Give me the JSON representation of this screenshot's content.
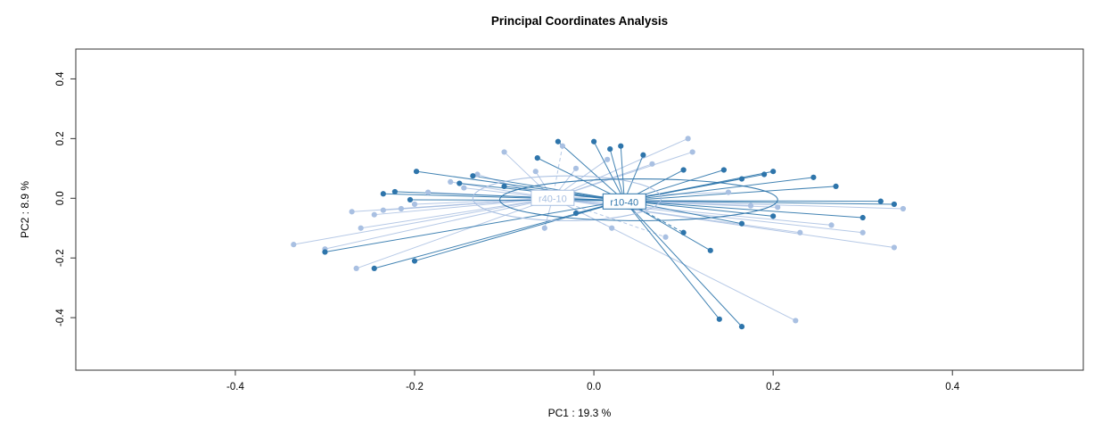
{
  "title": "Principal Coordinates Analysis",
  "chart_data": {
    "type": "scatter",
    "subtype": "pcoa-ordination-spider",
    "title": "Principal Coordinates Analysis",
    "xlabel": "PC1 :  19.3 %",
    "ylabel": "PC2 :  8.9 %",
    "xlim": [
      -0.578,
      0.546
    ],
    "ylim": [
      -0.576,
      0.5
    ],
    "grid": false,
    "legend": "none",
    "xticks": {
      "values": [
        -0.4,
        -0.2,
        0.0,
        0.2,
        0.4
      ],
      "labels": [
        "-0.4",
        "-0.2",
        "0.0",
        "0.2",
        "0.4"
      ]
    },
    "yticks": {
      "values": [
        -0.4,
        -0.2,
        0.0,
        0.2,
        0.4
      ],
      "labels": [
        "-0.4",
        "-0.2",
        "0.0",
        "0.2",
        "0.4"
      ]
    },
    "groups": [
      {
        "name": "r40-10",
        "color": "#a9c0e2",
        "line_opacity": 0.85,
        "centroid": [
          -0.046,
          0.0
        ],
        "ellipse": {
          "cx": -0.03,
          "cy": 0.0,
          "rx": 0.105,
          "ry": 0.075
        },
        "points": [
          [
            -0.335,
            -0.155
          ],
          [
            -0.3,
            -0.17
          ],
          [
            -0.265,
            -0.235
          ],
          [
            -0.26,
            -0.1
          ],
          [
            -0.27,
            -0.045
          ],
          [
            -0.245,
            -0.055
          ],
          [
            -0.235,
            -0.04
          ],
          [
            -0.215,
            -0.035
          ],
          [
            -0.2,
            -0.02
          ],
          [
            -0.185,
            0.02
          ],
          [
            -0.16,
            0.055
          ],
          [
            -0.145,
            0.035
          ],
          [
            -0.13,
            0.08
          ],
          [
            -0.1,
            0.155
          ],
          [
            -0.065,
            0.09
          ],
          [
            -0.035,
            0.175,
            1
          ],
          [
            -0.02,
            0.1
          ],
          [
            0.015,
            0.13
          ],
          [
            0.065,
            0.115
          ],
          [
            0.105,
            0.2
          ],
          [
            0.11,
            0.155
          ],
          [
            0.15,
            0.02
          ],
          [
            0.175,
            -0.025
          ],
          [
            0.205,
            -0.03
          ],
          [
            0.23,
            -0.115
          ],
          [
            0.265,
            -0.09
          ],
          [
            0.3,
            -0.115
          ],
          [
            0.335,
            -0.165
          ],
          [
            0.345,
            -0.035
          ],
          [
            0.225,
            -0.41
          ],
          [
            0.08,
            -0.13,
            1
          ],
          [
            0.02,
            -0.1,
            1
          ],
          [
            -0.055,
            -0.1
          ]
        ]
      },
      {
        "name": "r10-40",
        "color": "#2e75ab",
        "line_opacity": 0.9,
        "centroid": [
          0.034,
          -0.008
        ],
        "ellipse": {
          "cx": 0.05,
          "cy": -0.005,
          "rx": 0.155,
          "ry": 0.07
        },
        "points": [
          [
            -0.3,
            -0.18
          ],
          [
            -0.245,
            -0.235
          ],
          [
            -0.2,
            -0.21
          ],
          [
            -0.235,
            0.015
          ],
          [
            -0.222,
            0.022
          ],
          [
            -0.205,
            -0.005
          ],
          [
            -0.198,
            0.09
          ],
          [
            -0.15,
            0.05
          ],
          [
            -0.135,
            0.075
          ],
          [
            -0.1,
            0.04
          ],
          [
            -0.063,
            0.135
          ],
          [
            -0.04,
            0.19
          ],
          [
            0.0,
            0.19
          ],
          [
            0.018,
            0.165
          ],
          [
            0.03,
            0.175
          ],
          [
            0.055,
            0.145
          ],
          [
            0.1,
            0.095
          ],
          [
            0.145,
            0.095
          ],
          [
            0.165,
            0.065
          ],
          [
            0.19,
            0.08
          ],
          [
            0.2,
            0.09
          ],
          [
            0.245,
            0.07
          ],
          [
            0.27,
            0.04
          ],
          [
            0.32,
            -0.01
          ],
          [
            0.335,
            -0.02
          ],
          [
            0.3,
            -0.065
          ],
          [
            0.2,
            -0.06
          ],
          [
            0.165,
            -0.085
          ],
          [
            0.13,
            -0.175
          ],
          [
            0.14,
            -0.405
          ],
          [
            0.165,
            -0.43
          ],
          [
            0.1,
            -0.115,
            1
          ],
          [
            -0.02,
            -0.05
          ]
        ]
      }
    ],
    "centroid_labels": [
      {
        "text": "r40-10",
        "x": -0.046,
        "y": 0.0,
        "color": "#a9c0e2"
      },
      {
        "text": "r10-40",
        "x": 0.034,
        "y": -0.012,
        "color": "#2e75ab"
      }
    ]
  }
}
